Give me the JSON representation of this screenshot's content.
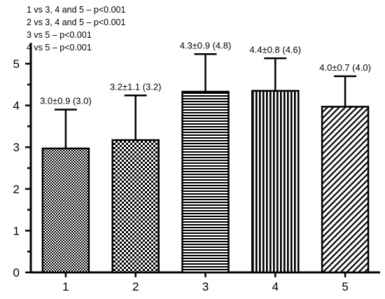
{
  "chart_data": {
    "type": "bar",
    "categories": [
      "1",
      "2",
      "3",
      "4",
      "5"
    ],
    "values": [
      2.97,
      3.17,
      4.33,
      4.35,
      3.97
    ],
    "errors": [
      0.93,
      1.07,
      0.9,
      0.78,
      0.73
    ],
    "data_labels": [
      "3.0±0.9 (3.0)",
      "3.2±1.1 (3.2)",
      "4.3±0.9 (4.8)",
      "4.4±0.8 (4.6)",
      "4.0±0.7 (4.0)"
    ],
    "patterns": [
      "fine-check",
      "coarse-check",
      "horizontal-lines",
      "vertical-lines",
      "diagonal-lines"
    ],
    "yticks": [
      "0",
      "1",
      "2",
      "3",
      "4",
      "5"
    ],
    "ylim": [
      0,
      5.5
    ],
    "title": "",
    "xlabel": "",
    "ylabel": "",
    "grid": false,
    "annotations": [
      "1 vs  3, 4 and 5 – p<0.001",
      "2 vs  3, 4 and 5 – p<0.001",
      "3 vs  5 – p<0.001",
      "4 vs  5 – p<0.001"
    ],
    "colors": {
      "bar_stroke": "#000000",
      "pattern_ink": "#000000",
      "background": "#ffffff"
    }
  }
}
